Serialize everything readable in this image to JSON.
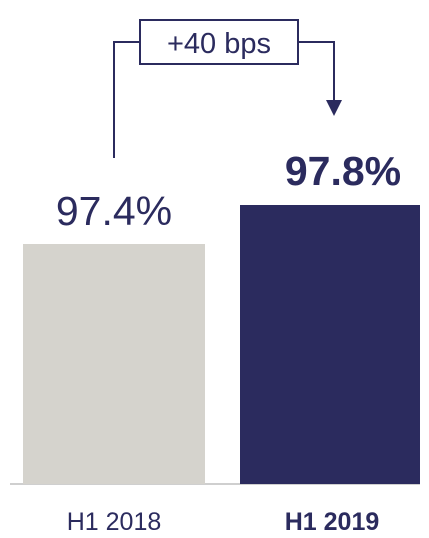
{
  "chart_data": {
    "type": "bar",
    "categories": [
      "H1 2018",
      "H1 2019"
    ],
    "values": [
      97.4,
      97.8
    ],
    "value_labels": [
      "97.4%",
      "97.8%"
    ],
    "colors": [
      "#d5d3cd",
      "#2b2b5e"
    ],
    "annotation": "+40 bps",
    "emphasized_category": "H1 2019"
  },
  "colors": {
    "text": "#2b2b5e",
    "connector": "#2b2b5e",
    "baseline": "#cfcfcf"
  }
}
